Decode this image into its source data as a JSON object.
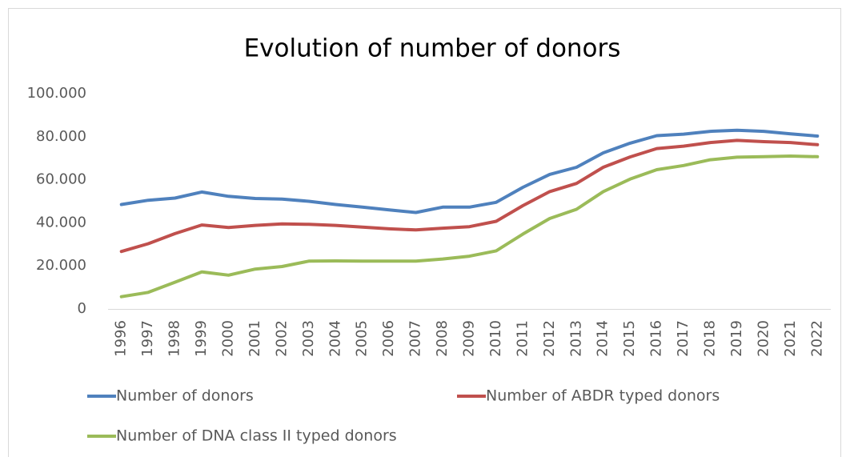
{
  "chart_data": {
    "type": "line",
    "title": "Evolution of number of donors",
    "categories": [
      "1996",
      "1997",
      "1998",
      "1999",
      "2000",
      "2001",
      "2002",
      "2003",
      "2004",
      "2005",
      "2006",
      "2007",
      "2008",
      "2009",
      "2010",
      "2011",
      "2012",
      "2013",
      "2014",
      "2015",
      "2016",
      "2017",
      "2018",
      "2019",
      "2020",
      "2021",
      "2022"
    ],
    "series": [
      {
        "name": "Number of donors",
        "color": "#4f81bd",
        "values": [
          48500,
          50500,
          51500,
          54300,
          52300,
          51300,
          51000,
          50000,
          48500,
          47300,
          46000,
          44800,
          47300,
          47300,
          49500,
          56500,
          62500,
          65800,
          72500,
          77000,
          80500,
          81200,
          82500,
          83000,
          82500,
          81300,
          80300
        ]
      },
      {
        "name": "Number of ABDR typed donors",
        "color": "#c0504d",
        "values": [
          26700,
          30300,
          35000,
          39000,
          37800,
          38800,
          39500,
          39300,
          38800,
          38000,
          37200,
          36700,
          37500,
          38200,
          40700,
          48000,
          54500,
          58300,
          65800,
          70600,
          74500,
          75600,
          77300,
          78300,
          77700,
          77300,
          76300
        ]
      },
      {
        "name": "Number of DNA class II typed donors",
        "color": "#9bbb59",
        "values": [
          5700,
          7700,
          12400,
          17200,
          15700,
          18500,
          19700,
          22200,
          22300,
          22200,
          22200,
          22200,
          23200,
          24500,
          27000,
          34800,
          42000,
          46300,
          54500,
          60300,
          64700,
          66600,
          69300,
          70500,
          70700,
          71000,
          70700
        ]
      }
    ],
    "ylim": [
      0,
      100000
    ],
    "yticks": [
      0,
      {
        "value": 20000,
        "label": "20.000"
      },
      {
        "value": 40000,
        "label": "40.000"
      },
      {
        "value": 60000,
        "label": "60.000"
      },
      {
        "value": 80000,
        "label": "80.000"
      },
      {
        "value": 100000,
        "label": "100.000"
      }
    ],
    "grid": false,
    "legend": "bottom"
  }
}
